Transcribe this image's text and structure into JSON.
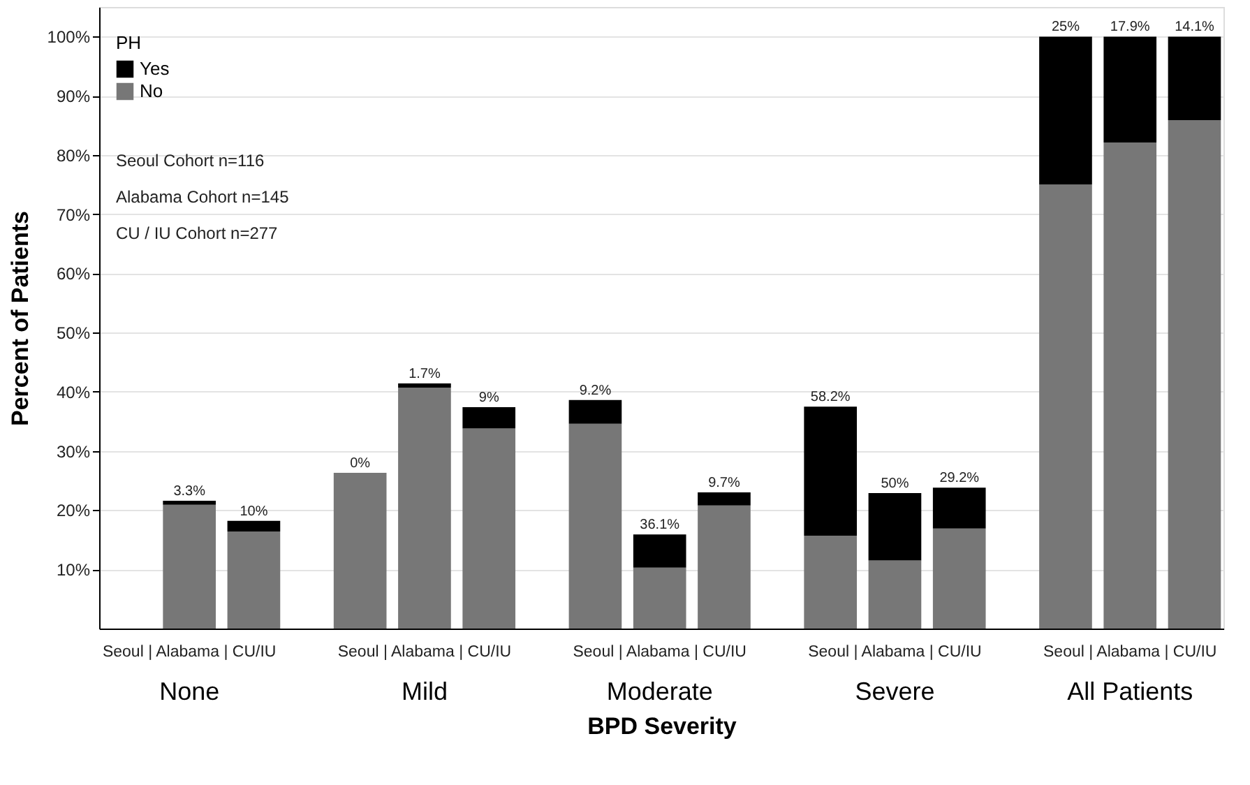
{
  "chart_data": {
    "type": "bar",
    "stacked": true,
    "xlabel": "BPD Severity",
    "ylabel": "Percent of Patients",
    "legend_title": "PH",
    "legend": "top left",
    "grid": "y",
    "categories": [
      null,
      null,
      null,
      null,
      null,
      null,
      null,
      null,
      null,
      null,
      null,
      null,
      null,
      null,
      null
    ],
    "series": [
      {
        "name": "No",
        "color": "#777777",
        "values": [
          null,
          20.9,
          16.4,
          26.3,
          40.7,
          33.8,
          34.6,
          10.3,
          20.8,
          15.7,
          11.5,
          16.9,
          75,
          82.1,
          85.9
        ]
      },
      {
        "name": "Yes",
        "color": "#000000",
        "values": [
          null,
          0.7,
          1.8,
          0,
          0.7,
          3.6,
          4.0,
          5.6,
          2.2,
          21.8,
          11.4,
          6.9,
          25,
          17.9,
          14.1
        ]
      }
    ],
    "ylim": [
      0,
      105
    ],
    "yticks": [
      {
        "value": 10,
        "label": "10%"
      },
      {
        "value": 20,
        "label": "20%"
      },
      {
        "value": 30,
        "label": "30%"
      },
      {
        "value": 40,
        "label": "40%"
      },
      {
        "value": 50,
        "label": "50%"
      },
      {
        "value": 60,
        "label": "60%"
      },
      {
        "value": 70,
        "label": "70%"
      },
      {
        "value": 80,
        "label": "80%"
      },
      {
        "value": 90,
        "label": "90%"
      },
      {
        "value": 100,
        "label": "100%"
      }
    ],
    "annotations": [
      "Seoul Cohort n=116",
      "Alabama Cohort n=145",
      "CU / IU  Cohort n=277",
      "Seoul | Alabama | CU/IU",
      "Seoul | Alabama | CU/IU",
      "Seoul | Alabama | CU/IU",
      "Seoul  | Alabama | CU/IU",
      "Seoul  | Alabama | CU/IU",
      "None",
      "Mild",
      "Moderate",
      "Severe",
      "All Patients",
      {
        "text": "3.3%",
        "y": 21.6
      },
      {
        "text": "10%",
        "y": 18.2
      },
      {
        "text": "0%",
        "y": 26.3
      },
      {
        "text": "1.7%",
        "y": 41.4
      },
      {
        "text": "9%",
        "y": 37.4
      },
      {
        "text": "9.2%",
        "y": 38.6
      },
      {
        "text": "36.1%",
        "y": 15.9
      },
      {
        "text": "9.7%",
        "y": 23.0
      },
      {
        "text": "58.2%",
        "y": 37.5
      },
      {
        "text": "50%",
        "y": 22.9
      },
      {
        "text": "29.2%",
        "y": 23.8
      },
      {
        "text": "25%",
        "y": 100
      },
      {
        "text": "17.9%",
        "y": 100
      },
      {
        "text": "14.1%",
        "y": 100
      }
    ]
  }
}
